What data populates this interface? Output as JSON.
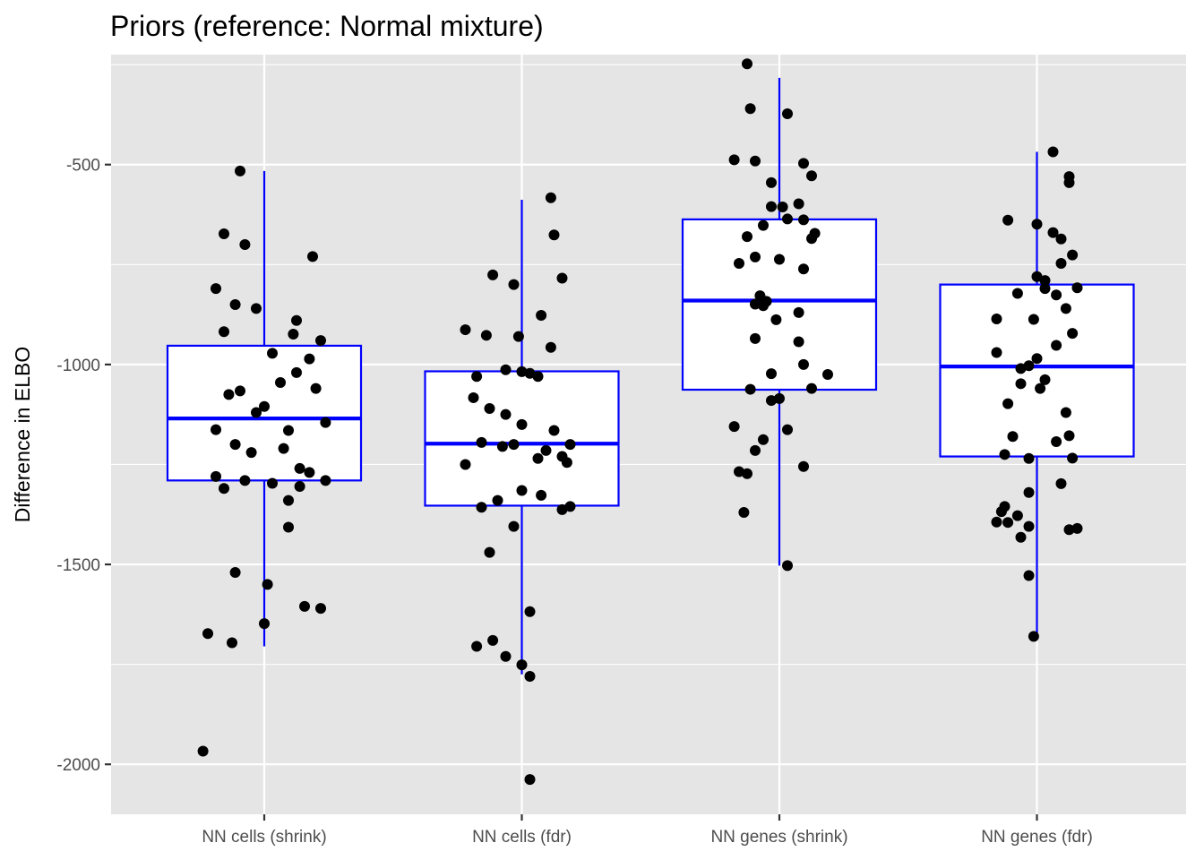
{
  "chart_data": {
    "type": "box",
    "title": "Priors (reference: Normal mixture)",
    "xlabel": "",
    "ylabel": "Difference in ELBO",
    "ylim": [
      -2125,
      -225
    ],
    "yticks": [
      -2000,
      -1500,
      -1000,
      -500
    ],
    "grid": true,
    "colors": {
      "panel": "#e5e5e5",
      "grid": "#ffffff",
      "box": "#0000ff",
      "point": "#000000"
    },
    "categories": [
      "NN cells (shrink)",
      "NN cells (fdr)",
      "NN genes (shrink)",
      "NN genes (fdr)"
    ],
    "boxes": [
      {
        "q1": -1290,
        "median": -1135,
        "q3": -953,
        "whisker_low": -1705,
        "whisker_high": -516
      },
      {
        "q1": -1353,
        "median": -1198,
        "q3": -1017,
        "whisker_low": -1775,
        "whisker_high": -588
      },
      {
        "q1": -1063,
        "median": -840,
        "q3": -637,
        "whisker_low": -1503,
        "whisker_high": -283
      },
      {
        "q1": -1230,
        "median": -1005,
        "q3": -800,
        "whisker_low": -1677,
        "whisker_high": -468
      }
    ],
    "points": [
      [
        [
          -0.38,
          -1967
        ],
        [
          -0.15,
          -516
        ],
        [
          -0.25,
          -673
        ],
        [
          -0.3,
          -810
        ],
        [
          -0.12,
          -700
        ],
        [
          -0.18,
          -850
        ],
        [
          -0.05,
          -860
        ],
        [
          0.3,
          -730
        ],
        [
          0.2,
          -890
        ],
        [
          0.05,
          -972
        ],
        [
          -0.25,
          -918
        ],
        [
          0.18,
          -924
        ],
        [
          0.35,
          -940
        ],
        [
          0.28,
          -986
        ],
        [
          -0.15,
          -1066
        ],
        [
          0.1,
          -1045
        ],
        [
          0.2,
          -1020
        ],
        [
          0.32,
          -1060
        ],
        [
          -0.22,
          -1075
        ],
        [
          0.0,
          -1105
        ],
        [
          -0.05,
          -1120
        ],
        [
          0.38,
          -1145
        ],
        [
          -0.3,
          -1163
        ],
        [
          0.15,
          -1165
        ],
        [
          -0.18,
          -1200
        ],
        [
          0.12,
          -1210
        ],
        [
          -0.08,
          -1220
        ],
        [
          0.22,
          -1260
        ],
        [
          0.28,
          -1270
        ],
        [
          -0.3,
          -1280
        ],
        [
          -0.12,
          -1290
        ],
        [
          0.38,
          -1290
        ],
        [
          0.05,
          -1297
        ],
        [
          0.22,
          -1305
        ],
        [
          -0.25,
          -1310
        ],
        [
          0.15,
          -1340
        ],
        [
          -0.18,
          -1520
        ],
        [
          0.02,
          -1550
        ],
        [
          0.25,
          -1605
        ],
        [
          0.35,
          -1610
        ],
        [
          -0.35,
          -1673
        ],
        [
          0.0,
          -1648
        ],
        [
          -0.2,
          -1696
        ],
        [
          0.15,
          -1407
        ]
      ],
      [
        [
          -0.35,
          -913
        ],
        [
          -0.22,
          -927
        ],
        [
          -0.28,
          -1030
        ],
        [
          -0.02,
          -930
        ],
        [
          0.18,
          -957
        ],
        [
          0.12,
          -877
        ],
        [
          -0.18,
          -776
        ],
        [
          -0.05,
          -800
        ],
        [
          0.2,
          -676
        ],
        [
          0.25,
          -784
        ],
        [
          0.18,
          -583
        ],
        [
          -0.1,
          -1013
        ],
        [
          0.0,
          -1018
        ],
        [
          0.05,
          -1022
        ],
        [
          -0.3,
          -1083
        ],
        [
          -0.2,
          -1110
        ],
        [
          0.1,
          -1030
        ],
        [
          -0.1,
          -1125
        ],
        [
          0.0,
          -1150
        ],
        [
          0.2,
          -1165
        ],
        [
          -0.25,
          -1195
        ],
        [
          -0.05,
          -1200
        ],
        [
          0.15,
          -1215
        ],
        [
          0.3,
          -1200
        ],
        [
          0.25,
          -1230
        ],
        [
          -0.35,
          -1250
        ],
        [
          -0.12,
          -1205
        ],
        [
          0.1,
          -1235
        ],
        [
          0.28,
          -1245
        ],
        [
          0.0,
          -1315
        ],
        [
          -0.15,
          -1340
        ],
        [
          0.12,
          -1327
        ],
        [
          0.25,
          -1363
        ],
        [
          -0.25,
          -1357
        ],
        [
          0.3,
          -1355
        ],
        [
          -0.05,
          -1405
        ],
        [
          -0.2,
          -1470
        ],
        [
          0.05,
          -1618
        ],
        [
          -0.18,
          -1690
        ],
        [
          -0.28,
          -1705
        ],
        [
          -0.1,
          -1730
        ],
        [
          0.0,
          -1751
        ],
        [
          0.05,
          -1780
        ],
        [
          0.05,
          -2038
        ]
      ],
      [
        [
          -0.2,
          -248
        ],
        [
          -0.18,
          -360
        ],
        [
          0.05,
          -373
        ],
        [
          -0.15,
          -491
        ],
        [
          -0.28,
          -488
        ],
        [
          0.15,
          -497
        ],
        [
          -0.05,
          -545
        ],
        [
          0.02,
          -606
        ],
        [
          -0.05,
          -605
        ],
        [
          0.12,
          -598
        ],
        [
          0.2,
          -528
        ],
        [
          0.15,
          -638
        ],
        [
          0.05,
          -636
        ],
        [
          -0.1,
          -652
        ],
        [
          0.2,
          -685
        ],
        [
          0.22,
          -672
        ],
        [
          -0.2,
          -680
        ],
        [
          -0.15,
          -731
        ],
        [
          0.0,
          -737
        ],
        [
          -0.25,
          -747
        ],
        [
          0.15,
          -761
        ],
        [
          -0.12,
          -828
        ],
        [
          -0.08,
          -842
        ],
        [
          -0.1,
          -853
        ],
        [
          -0.15,
          -849
        ],
        [
          0.12,
          -870
        ],
        [
          -0.02,
          -888
        ],
        [
          -0.15,
          -935
        ],
        [
          0.12,
          -943
        ],
        [
          -0.05,
          -1023
        ],
        [
          0.15,
          -1000
        ],
        [
          0.2,
          -1060
        ],
        [
          0.3,
          -1025
        ],
        [
          -0.18,
          -1062
        ],
        [
          0.0,
          -1085
        ],
        [
          -0.05,
          -1090
        ],
        [
          0.05,
          -1163
        ],
        [
          -0.28,
          -1155
        ],
        [
          -0.1,
          -1188
        ],
        [
          -0.15,
          -1215
        ],
        [
          0.15,
          -1255
        ],
        [
          -0.25,
          -1268
        ],
        [
          -0.2,
          -1273
        ],
        [
          -0.22,
          -1370
        ],
        [
          0.05,
          -1503
        ]
      ],
      [
        [
          0.1,
          -468
        ],
        [
          0.2,
          -530
        ],
        [
          0.2,
          -545
        ],
        [
          -0.18,
          -639
        ],
        [
          0.0,
          -649
        ],
        [
          0.1,
          -670
        ],
        [
          0.15,
          -686
        ],
        [
          0.22,
          -726
        ],
        [
          0.15,
          -747
        ],
        [
          0.0,
          -780
        ],
        [
          0.05,
          -790
        ],
        [
          0.12,
          -826
        ],
        [
          0.25,
          -808
        ],
        [
          -0.12,
          -822
        ],
        [
          0.05,
          -810
        ],
        [
          0.18,
          -860
        ],
        [
          -0.25,
          -886
        ],
        [
          -0.02,
          -887
        ],
        [
          0.22,
          -922
        ],
        [
          0.12,
          -952
        ],
        [
          -0.25,
          -970
        ],
        [
          0.0,
          -985
        ],
        [
          -0.1,
          -1010
        ],
        [
          -0.05,
          -1003
        ],
        [
          0.05,
          -1038
        ],
        [
          -0.1,
          -1048
        ],
        [
          0.02,
          -1060
        ],
        [
          -0.18,
          -1098
        ],
        [
          0.18,
          -1120
        ],
        [
          0.2,
          -1178
        ],
        [
          -0.15,
          -1180
        ],
        [
          0.12,
          -1193
        ],
        [
          0.22,
          -1234
        ],
        [
          -0.2,
          -1225
        ],
        [
          -0.05,
          -1235
        ],
        [
          0.15,
          -1298
        ],
        [
          -0.05,
          -1320
        ],
        [
          -0.2,
          -1355
        ],
        [
          -0.22,
          -1368
        ],
        [
          -0.12,
          -1378
        ],
        [
          -0.25,
          -1394
        ],
        [
          -0.18,
          -1395
        ],
        [
          -0.05,
          -1405
        ],
        [
          0.2,
          -1413
        ],
        [
          0.25,
          -1410
        ],
        [
          -0.1,
          -1432
        ],
        [
          -0.05,
          -1528
        ],
        [
          -0.02,
          -1680
        ]
      ]
    ]
  }
}
